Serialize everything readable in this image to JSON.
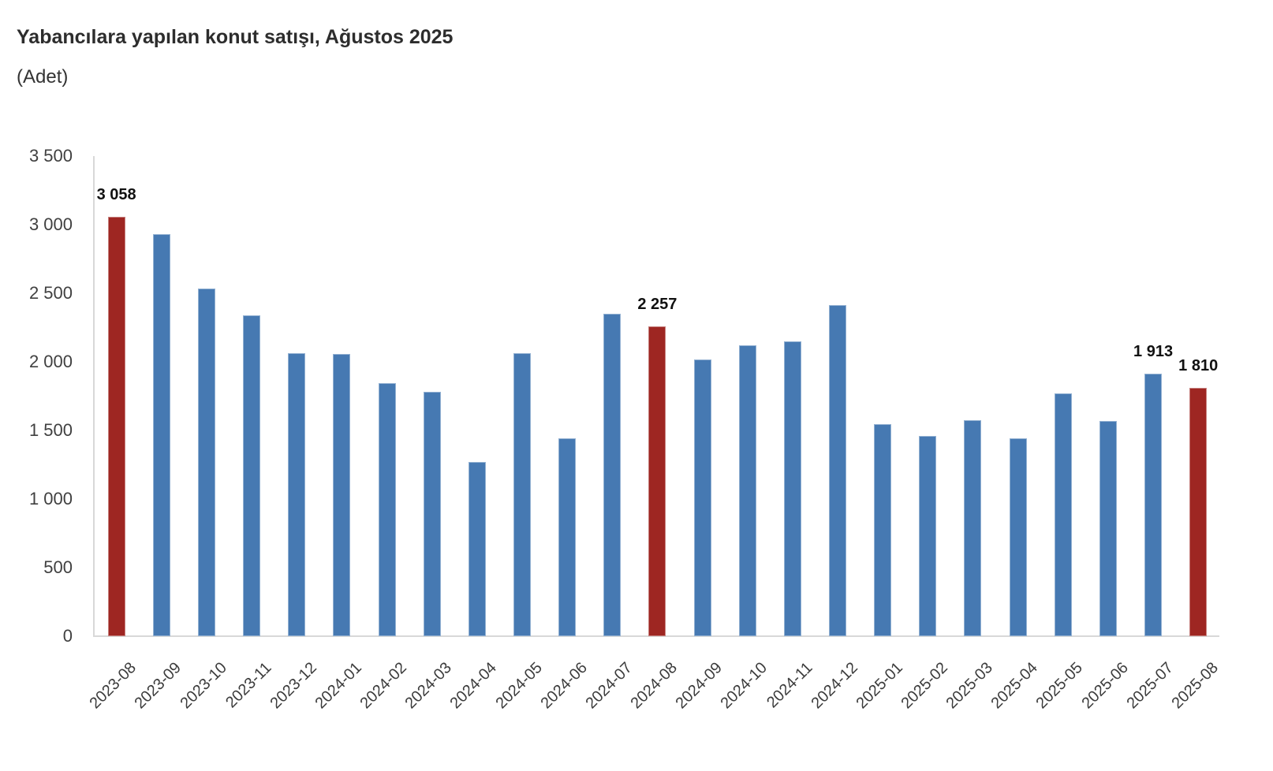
{
  "header": {
    "title": "Yabancılara yapılan konut satışı, Ağustos 2025",
    "subtitle": "(Adet)"
  },
  "chart_data": {
    "type": "bar",
    "title": "Yabancılara yapılan konut satışı, Ağustos 2025",
    "unit_label": "(Adet)",
    "ylabel": "",
    "xlabel": "",
    "ylim": [
      0,
      3500
    ],
    "grid": false,
    "legend": false,
    "bar_color": "#4679b2",
    "highlight_color": "#9e2622",
    "axis_color": "#d8d8d8",
    "y_axis_ticks": [
      {
        "value": 3500,
        "label": "3 500"
      },
      {
        "value": 3000,
        "label": "3 000"
      },
      {
        "value": 2500,
        "label": "2 500"
      },
      {
        "value": 2000,
        "label": "2 000"
      },
      {
        "value": 1500,
        "label": "1 500"
      },
      {
        "value": 1000,
        "label": "1 000"
      },
      {
        "value": 500,
        "label": "500"
      },
      {
        "value": 0,
        "label": "0"
      }
    ],
    "points": [
      {
        "category": "2023-08",
        "value": 3058,
        "highlight": true,
        "data_label": "3 058"
      },
      {
        "category": "2023-09",
        "value": 2930,
        "highlight": false,
        "data_label": null
      },
      {
        "category": "2023-10",
        "value": 2535,
        "highlight": false,
        "data_label": null
      },
      {
        "category": "2023-11",
        "value": 2340,
        "highlight": false,
        "data_label": null
      },
      {
        "category": "2023-12",
        "value": 2065,
        "highlight": false,
        "data_label": null
      },
      {
        "category": "2024-01",
        "value": 2060,
        "highlight": false,
        "data_label": null
      },
      {
        "category": "2024-02",
        "value": 1845,
        "highlight": false,
        "data_label": null
      },
      {
        "category": "2024-03",
        "value": 1780,
        "highlight": false,
        "data_label": null
      },
      {
        "category": "2024-04",
        "value": 1270,
        "highlight": false,
        "data_label": null
      },
      {
        "category": "2024-05",
        "value": 2065,
        "highlight": false,
        "data_label": null
      },
      {
        "category": "2024-06",
        "value": 1440,
        "highlight": false,
        "data_label": null
      },
      {
        "category": "2024-07",
        "value": 2350,
        "highlight": false,
        "data_label": null
      },
      {
        "category": "2024-08",
        "value": 2257,
        "highlight": true,
        "data_label": "2 257"
      },
      {
        "category": "2024-09",
        "value": 2020,
        "highlight": false,
        "data_label": null
      },
      {
        "category": "2024-10",
        "value": 2120,
        "highlight": false,
        "data_label": null
      },
      {
        "category": "2024-11",
        "value": 2150,
        "highlight": false,
        "data_label": null
      },
      {
        "category": "2024-12",
        "value": 2415,
        "highlight": false,
        "data_label": null
      },
      {
        "category": "2025-01",
        "value": 1545,
        "highlight": false,
        "data_label": null
      },
      {
        "category": "2025-02",
        "value": 1460,
        "highlight": false,
        "data_label": null
      },
      {
        "category": "2025-03",
        "value": 1575,
        "highlight": false,
        "data_label": null
      },
      {
        "category": "2025-04",
        "value": 1440,
        "highlight": false,
        "data_label": null
      },
      {
        "category": "2025-05",
        "value": 1770,
        "highlight": false,
        "data_label": null
      },
      {
        "category": "2025-06",
        "value": 1570,
        "highlight": false,
        "data_label": null
      },
      {
        "category": "2025-07",
        "value": 1913,
        "highlight": false,
        "data_label": "1 913"
      },
      {
        "category": "2025-08",
        "value": 1810,
        "highlight": true,
        "data_label": "1 810"
      }
    ]
  }
}
